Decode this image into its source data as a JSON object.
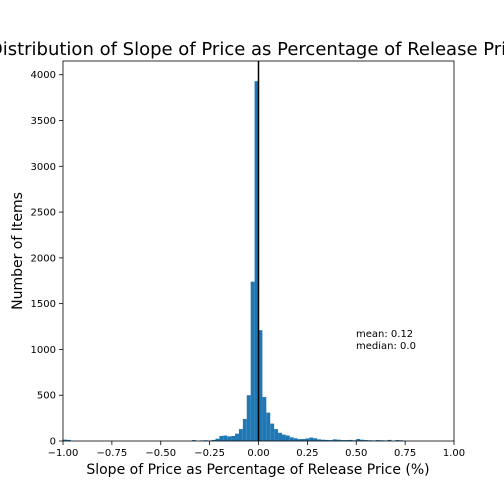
{
  "chart_data": {
    "type": "bar",
    "title": "Distribution of Slope of Price as Percentage of Release Price",
    "xlabel": "Slope of Price as Percentage of Release Price (%)",
    "ylabel": "Number of Items",
    "xlim": [
      -1.0,
      1.0
    ],
    "ylim": [
      0,
      4150
    ],
    "bin_width": 0.02,
    "x_ticks": [
      -1.0,
      -0.75,
      -0.5,
      -0.25,
      0.0,
      0.25,
      0.5,
      0.75,
      1.0
    ],
    "x_tick_labels": [
      "−1.00",
      "−0.75",
      "−0.50",
      "−0.25",
      "0.00",
      "0.25",
      "0.50",
      "0.75",
      "1.00"
    ],
    "y_ticks": [
      0,
      500,
      1000,
      1500,
      2000,
      2500,
      3000,
      3500,
      4000
    ],
    "y_tick_labels": [
      "0",
      "500",
      "1000",
      "1500",
      "2000",
      "2500",
      "3000",
      "3500",
      "4000"
    ],
    "vline_x": 0.0,
    "bar_color": "#1f77b4",
    "annotation": [
      "mean: 0.12",
      "median: 0.0"
    ],
    "bins_left_edges": [
      -1.0,
      -0.98,
      -0.34,
      -0.3,
      -0.28,
      -0.26,
      -0.24,
      -0.22,
      -0.2,
      -0.18,
      -0.16,
      -0.14,
      -0.12,
      -0.1,
      -0.08,
      -0.06,
      -0.04,
      -0.02,
      0.0,
      0.02,
      0.04,
      0.06,
      0.08,
      0.1,
      0.12,
      0.14,
      0.16,
      0.18,
      0.2,
      0.22,
      0.24,
      0.26,
      0.28,
      0.3,
      0.32,
      0.34,
      0.36,
      0.38,
      0.4,
      0.42,
      0.44,
      0.46,
      0.48,
      0.5,
      0.52,
      0.54,
      0.56,
      0.58,
      0.6,
      0.62,
      0.64,
      0.66,
      0.7,
      0.72
    ],
    "values": [
      15,
      12,
      10,
      6,
      8,
      5,
      12,
      25,
      55,
      60,
      50,
      55,
      80,
      130,
      240,
      500,
      1740,
      3930,
      1210,
      480,
      310,
      190,
      130,
      90,
      70,
      60,
      40,
      30,
      20,
      22,
      28,
      38,
      30,
      18,
      14,
      12,
      10,
      18,
      15,
      10,
      10,
      12,
      8,
      22,
      14,
      10,
      8,
      6,
      10,
      8,
      6,
      12,
      10,
      8
    ]
  }
}
